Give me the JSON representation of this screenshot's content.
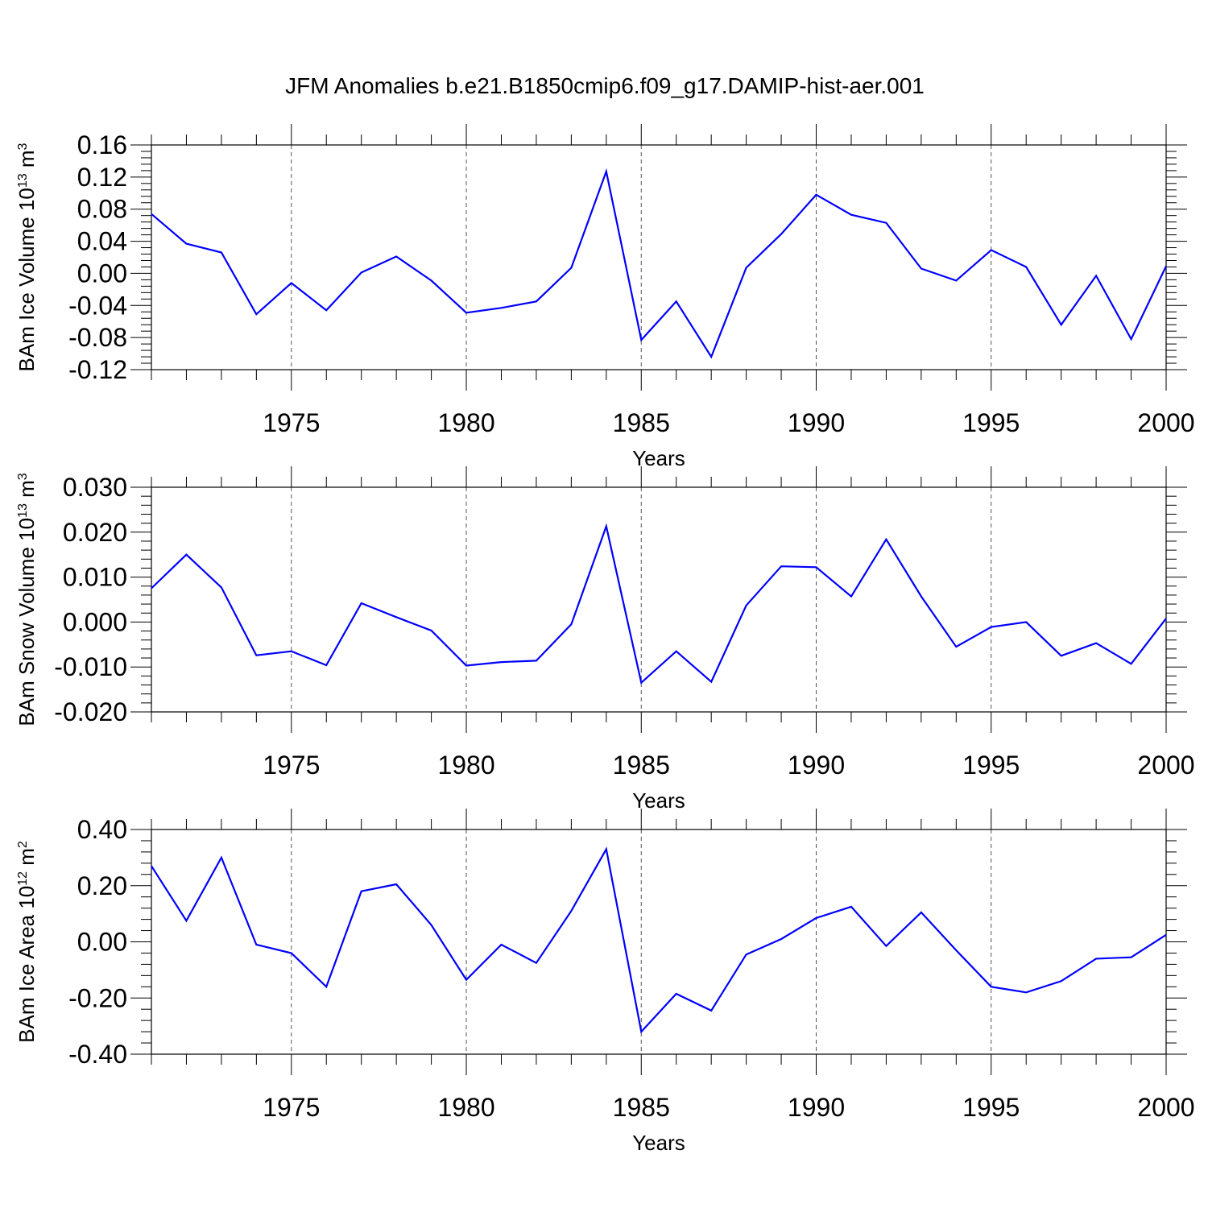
{
  "title": "JFM Anomalies b.e21.B1850cmip6.f09_g17.DAMIP-hist-aer.001",
  "chart_data": [
    {
      "type": "line",
      "xlabel": "Years",
      "ylabel": {
        "prefix": "BAm Ice Volume 10",
        "exponent": "13",
        "unit": " m",
        "unit_exponent": "3"
      },
      "x": [
        1971,
        1972,
        1973,
        1974,
        1975,
        1976,
        1977,
        1978,
        1979,
        1980,
        1981,
        1982,
        1983,
        1984,
        1985,
        1986,
        1987,
        1988,
        1989,
        1990,
        1991,
        1992,
        1993,
        1994,
        1995,
        1996,
        1997,
        1998,
        1999,
        2000
      ],
      "series": [
        {
          "values": [
            0.074,
            0.037,
            0.026,
            -0.051,
            -0.012,
            -0.046,
            0.001,
            0.021,
            -0.009,
            -0.049,
            -0.043,
            -0.035,
            0.007,
            0.127,
            -0.083,
            -0.035,
            -0.104,
            0.007,
            0.049,
            0.098,
            0.073,
            0.063,
            0.006,
            -0.009,
            0.029,
            0.008,
            -0.064,
            -0.003,
            -0.082,
            0.009
          ]
        }
      ],
      "xlim": [
        1971,
        2000
      ],
      "ylim": [
        -0.12,
        0.16
      ],
      "xticks": [
        "1975",
        "1980",
        "1985",
        "1990",
        "1995",
        "2000"
      ],
      "yticks": [
        "0.16",
        "0.12",
        "0.08",
        "0.04",
        "0.00",
        "-0.04",
        "-0.08",
        "-0.12"
      ],
      "grid": "dashed vertical lines at labeled years",
      "line_color": "#0000ff"
    },
    {
      "type": "line",
      "xlabel": "Years",
      "ylabel": {
        "prefix": "BAm Snow Volume 10",
        "exponent": "13",
        "unit": " m",
        "unit_exponent": "3"
      },
      "x": [
        1971,
        1972,
        1973,
        1974,
        1975,
        1976,
        1977,
        1978,
        1979,
        1980,
        1981,
        1982,
        1983,
        1984,
        1985,
        1986,
        1987,
        1988,
        1989,
        1990,
        1991,
        1992,
        1993,
        1994,
        1995,
        1996,
        1997,
        1998,
        1999,
        2000
      ],
      "series": [
        {
          "values": [
            0.0075,
            0.015,
            0.0077,
            -0.0074,
            -0.0065,
            -0.0096,
            0.0042,
            0.0011,
            -0.0019,
            -0.0097,
            -0.0089,
            -0.0086,
            -0.0005,
            0.0213,
            -0.0135,
            -0.0065,
            -0.0133,
            0.0037,
            0.0124,
            0.0122,
            0.0057,
            0.0184,
            0.0057,
            -0.0055,
            -0.0011,
            0.0,
            -0.0075,
            -0.0047,
            -0.0093,
            0.0008
          ]
        }
      ],
      "xlim": [
        1971,
        2000
      ],
      "ylim": [
        -0.02,
        0.03
      ],
      "xticks": [
        "1975",
        "1980",
        "1985",
        "1990",
        "1995",
        "2000"
      ],
      "yticks": [
        "0.030",
        "0.020",
        "0.010",
        "0.000",
        "-0.010",
        "-0.020"
      ],
      "grid": "dashed vertical lines at labeled years",
      "line_color": "#0000ff"
    },
    {
      "type": "line",
      "xlabel": "Years",
      "ylabel": {
        "prefix": "BAm Ice Area 10",
        "exponent": "12",
        "unit": " m",
        "unit_exponent": "2"
      },
      "x": [
        1971,
        1972,
        1973,
        1974,
        1975,
        1976,
        1977,
        1978,
        1979,
        1980,
        1981,
        1982,
        1983,
        1984,
        1985,
        1986,
        1987,
        1988,
        1989,
        1990,
        1991,
        1992,
        1993,
        1994,
        1995,
        1996,
        1997,
        1998,
        1999,
        2000
      ],
      "series": [
        {
          "values": [
            0.27,
            0.075,
            0.3,
            -0.01,
            -0.04,
            -0.16,
            0.18,
            0.205,
            0.06,
            -0.135,
            -0.01,
            -0.075,
            0.11,
            0.33,
            -0.32,
            -0.185,
            -0.245,
            -0.045,
            0.01,
            0.085,
            0.125,
            -0.015,
            0.105,
            -0.03,
            -0.16,
            -0.18,
            -0.14,
            -0.06,
            -0.055,
            0.025
          ]
        }
      ],
      "xlim": [
        1971,
        2000
      ],
      "ylim": [
        -0.4,
        0.4
      ],
      "xticks": [
        "1975",
        "1980",
        "1985",
        "1990",
        "1995",
        "2000"
      ],
      "yticks": [
        "0.40",
        "0.20",
        "0.00",
        "-0.20",
        "-0.40"
      ],
      "grid": "dashed vertical lines at labeled years",
      "line_color": "#0000ff"
    }
  ]
}
